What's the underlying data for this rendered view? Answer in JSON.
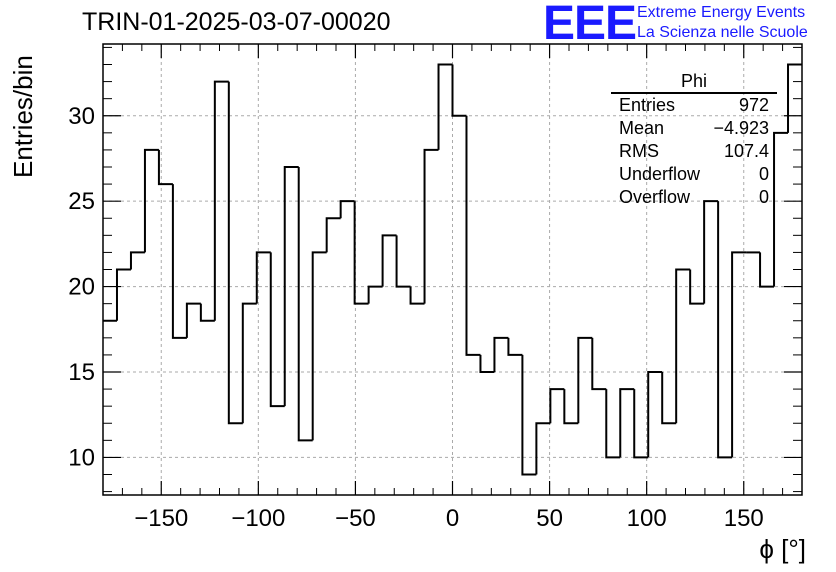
{
  "chart_data": {
    "type": "histogram",
    "title": "TRIN-01-2025-03-07-00020",
    "xlabel": "ϕ [°]",
    "ylabel": "Entries/bin",
    "xlim": [
      -180,
      180
    ],
    "ylim": [
      7.8,
      34.2
    ],
    "xticks": [
      -150,
      -100,
      -50,
      0,
      50,
      100,
      150
    ],
    "yticks": [
      10,
      15,
      20,
      25,
      30
    ],
    "grid": true,
    "bin_edges_start": -180,
    "bin_width": 7.2,
    "values": [
      18,
      21,
      22,
      28,
      26,
      17,
      19,
      18,
      32,
      12,
      19,
      22,
      13,
      27,
      11,
      22,
      24,
      25,
      19,
      20,
      23,
      20,
      19,
      28,
      33,
      30,
      16,
      15,
      17,
      16,
      9,
      12,
      14,
      12,
      17,
      14,
      10,
      14,
      10,
      15,
      12,
      21,
      19,
      25,
      10,
      22,
      22,
      20,
      29,
      33
    ],
    "stats": {
      "title": "Phi",
      "rows": [
        {
          "label": "Entries",
          "value": "972"
        },
        {
          "label": "Mean",
          "value": "−4.923"
        },
        {
          "label": "RMS",
          "value": "107.4"
        },
        {
          "label": "Underflow",
          "value": "0"
        },
        {
          "label": "Overflow",
          "value": "0"
        }
      ]
    }
  },
  "logo": {
    "mark": "EEE",
    "line1": "Extreme Energy Events",
    "line2": "La Scienza nelle Scuole"
  },
  "colors": {
    "line": "#000000",
    "grid": "#aaaaaa",
    "logo": "#1a1aff"
  }
}
